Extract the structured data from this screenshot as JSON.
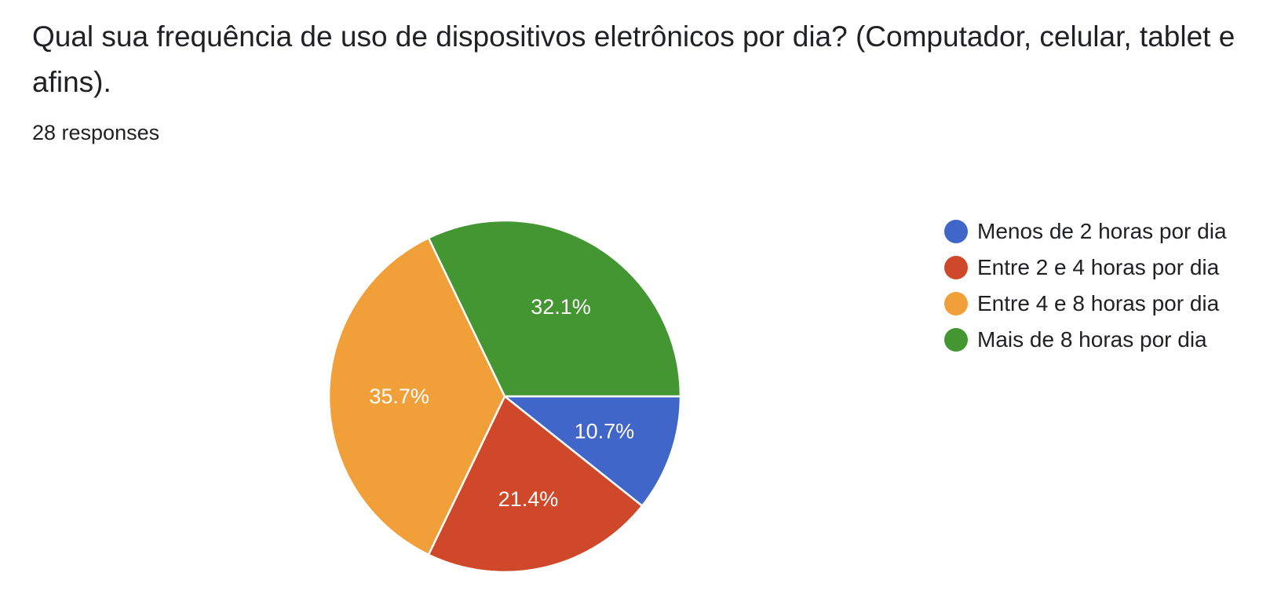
{
  "title": "Qual sua frequência de uso de dispositivos eletrônicos por dia? (Computador, celular, tablet e afins).",
  "responses_label": "28 responses",
  "chart_data": {
    "type": "pie",
    "start_angle_deg": 90,
    "direction": "clockwise",
    "legend_position": "right",
    "slices": [
      {
        "label": "Menos de 2 horas por dia",
        "value": 10.7,
        "value_label": "10.7%",
        "color": "#4166c9"
      },
      {
        "label": "Entre 2 e 4 horas por dia",
        "value": 21.4,
        "value_label": "21.4%",
        "color": "#cf4829"
      },
      {
        "label": "Entre 4 e 8 horas por dia",
        "value": 35.7,
        "value_label": "35.7%",
        "color": "#f09f39"
      },
      {
        "label": "Mais de 8 horas por dia",
        "value": 32.1,
        "value_label": "32.1%",
        "color": "#449633"
      }
    ]
  }
}
